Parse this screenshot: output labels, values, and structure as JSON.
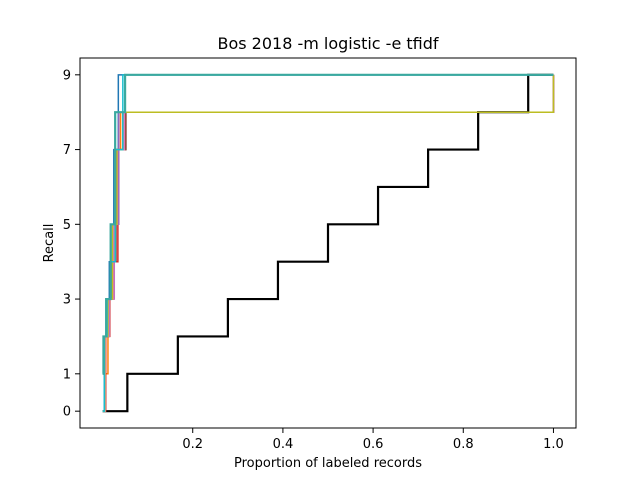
{
  "chart_data": {
    "type": "line",
    "title": "Bos 2018 -m logistic -e tfidf",
    "xlabel": "Proportion of labeled records",
    "ylabel": "Recall",
    "xlim": [
      -0.05,
      1.05
    ],
    "ylim": [
      -0.45,
      9.45
    ],
    "x_ticks": [
      0.2,
      0.4,
      0.6,
      0.8,
      1.0
    ],
    "x_tick_labels": [
      "0.2",
      "0.4",
      "0.6",
      "0.8",
      "1.0"
    ],
    "y_ticks": [
      0,
      1,
      3,
      5,
      7,
      9
    ],
    "y_tick_labels": [
      "0",
      "1",
      "3",
      "5",
      "7",
      "9"
    ],
    "grid": false,
    "line_style": "steps-post",
    "series": [
      {
        "color": "#000000",
        "width": 2.2,
        "x": [
          0,
          0.055,
          0.167,
          0.278,
          0.389,
          0.5,
          0.611,
          0.722,
          0.833,
          0.944,
          1.0
        ],
        "y": [
          0,
          1,
          2,
          3,
          4,
          5,
          6,
          7,
          8,
          9,
          9
        ]
      },
      {
        "color": "#1f77b4",
        "width": 1.5,
        "x": [
          0,
          0.004,
          0.008,
          0.015,
          0.025,
          0.035,
          1.0
        ],
        "y": [
          0,
          2,
          3,
          4,
          7,
          9,
          9
        ]
      },
      {
        "color": "#ff7f0e",
        "width": 1.5,
        "x": [
          0,
          0.006,
          0.012,
          0.02,
          0.028,
          0.04,
          1.0
        ],
        "y": [
          0,
          1,
          3,
          4,
          7,
          8,
          9
        ]
      },
      {
        "color": "#2ca02c",
        "width": 1.5,
        "x": [
          0,
          0.005,
          0.013,
          0.022,
          0.03,
          0.045,
          1.0
        ],
        "y": [
          0,
          2,
          3,
          5,
          7,
          8,
          9
        ]
      },
      {
        "color": "#d62728",
        "width": 1.5,
        "x": [
          0,
          0.007,
          0.016,
          0.024,
          0.034,
          0.05,
          1.0
        ],
        "y": [
          0,
          2,
          3,
          4,
          7,
          8,
          9
        ]
      },
      {
        "color": "#9467bd",
        "width": 1.5,
        "x": [
          0,
          0.006,
          0.015,
          0.026,
          0.036,
          0.06,
          1.0
        ],
        "y": [
          0,
          2,
          3,
          5,
          8,
          8,
          9
        ]
      },
      {
        "color": "#8c564b",
        "width": 1.5,
        "x": [
          0,
          0.005,
          0.013,
          0.02,
          0.03,
          0.052,
          1.0
        ],
        "y": [
          0,
          2,
          3,
          4,
          7,
          8,
          9
        ]
      },
      {
        "color": "#e377c2",
        "width": 1.5,
        "x": [
          0,
          0.006,
          0.014,
          0.025,
          0.033,
          0.048,
          1.0
        ],
        "y": [
          0,
          2,
          3,
          5,
          7,
          8,
          9
        ]
      },
      {
        "color": "#bcbd22",
        "width": 1.5,
        "x": [
          0,
          0.005,
          0.012,
          0.022,
          0.032,
          0.045,
          1.0
        ],
        "y": [
          0,
          2,
          3,
          5,
          7,
          8,
          9
        ]
      },
      {
        "color": "#17becf",
        "width": 1.5,
        "x": [
          0,
          0.004,
          0.01,
          0.018,
          0.028,
          0.045,
          1.0
        ],
        "y": [
          0,
          2,
          3,
          4,
          7,
          9,
          9
        ]
      },
      {
        "color": "#3aa99f",
        "width": 2.2,
        "x": [
          0,
          0.002,
          0.008,
          0.018,
          0.028,
          0.05,
          1.0
        ],
        "y": [
          1,
          2,
          3,
          5,
          8,
          9,
          9
        ]
      }
    ]
  }
}
